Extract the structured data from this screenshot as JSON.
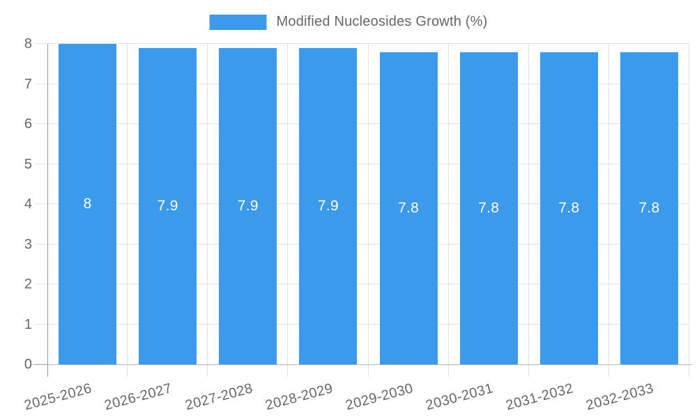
{
  "chart_data": {
    "type": "bar",
    "title": "",
    "legend": [
      {
        "label": "Modified Nucleosides Growth (%)"
      }
    ],
    "legend_position": "top-center",
    "categories": [
      "2025-2026",
      "2026-2027",
      "2027-2028",
      "2028-2029",
      "2029-2030",
      "2030-2031",
      "2031-2032",
      "2032-2033"
    ],
    "series": [
      {
        "name": "Modified Nucleosides Growth (%)",
        "values": [
          8,
          7.9,
          7.9,
          7.9,
          7.8,
          7.8,
          7.8,
          7.8
        ],
        "value_labels": [
          "8",
          "7.9",
          "7.9",
          "7.9",
          "7.8",
          "7.8",
          "7.8",
          "7.8"
        ]
      }
    ],
    "xlabel": "",
    "ylabel": "",
    "ylim": [
      0,
      8
    ],
    "yticks": [
      0,
      1,
      2,
      3,
      4,
      5,
      6,
      7,
      8
    ],
    "ytick_labels": [
      "0",
      "1",
      "2",
      "3",
      "4",
      "5",
      "6",
      "7",
      "8"
    ],
    "grid": true,
    "x_label_rotation_deg": -15
  },
  "colors": {
    "bar": "#3C9AEC",
    "axis_text": "#666666",
    "value_label_text": "#ffffff",
    "gridline": "#e2e2e2",
    "baseline": "#b3b3b3",
    "y_axis_line": "#999999",
    "background": "#ffffff"
  }
}
